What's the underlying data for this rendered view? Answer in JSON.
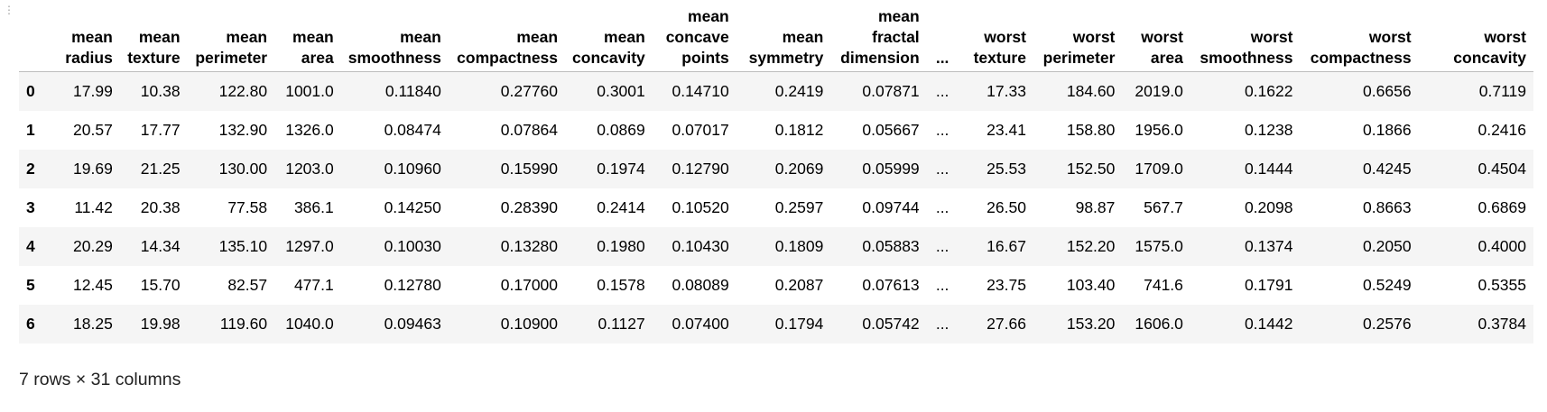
{
  "output": {
    "gutter_icon": "drag-handle-dots",
    "index_header": "",
    "columns": [
      [
        "mean",
        "radius"
      ],
      [
        "mean",
        "texture"
      ],
      [
        "mean",
        "perimeter"
      ],
      [
        "mean",
        "area"
      ],
      [
        "mean",
        "smoothness"
      ],
      [
        "mean",
        "compactness"
      ],
      [
        "mean",
        "concavity"
      ],
      [
        "mean",
        "concave",
        "points"
      ],
      [
        "mean",
        "symmetry"
      ],
      [
        "mean",
        "fractal",
        "dimension"
      ],
      [
        "..."
      ],
      [
        "worst",
        "texture"
      ],
      [
        "worst",
        "perimeter"
      ],
      [
        "worst",
        "area"
      ],
      [
        "worst",
        "smoothness"
      ],
      [
        "worst",
        "compactness"
      ],
      [
        "worst",
        "concavity"
      ]
    ],
    "rows": [
      {
        "index": "0",
        "cells": [
          "17.99",
          "10.38",
          "122.80",
          "1001.0",
          "0.11840",
          "0.27760",
          "0.3001",
          "0.14710",
          "0.2419",
          "0.07871",
          "...",
          "17.33",
          "184.60",
          "2019.0",
          "0.1622",
          "0.6656",
          "0.7119"
        ]
      },
      {
        "index": "1",
        "cells": [
          "20.57",
          "17.77",
          "132.90",
          "1326.0",
          "0.08474",
          "0.07864",
          "0.0869",
          "0.07017",
          "0.1812",
          "0.05667",
          "...",
          "23.41",
          "158.80",
          "1956.0",
          "0.1238",
          "0.1866",
          "0.2416"
        ]
      },
      {
        "index": "2",
        "cells": [
          "19.69",
          "21.25",
          "130.00",
          "1203.0",
          "0.10960",
          "0.15990",
          "0.1974",
          "0.12790",
          "0.2069",
          "0.05999",
          "...",
          "25.53",
          "152.50",
          "1709.0",
          "0.1444",
          "0.4245",
          "0.4504"
        ]
      },
      {
        "index": "3",
        "cells": [
          "11.42",
          "20.38",
          "77.58",
          "386.1",
          "0.14250",
          "0.28390",
          "0.2414",
          "0.10520",
          "0.2597",
          "0.09744",
          "...",
          "26.50",
          "98.87",
          "567.7",
          "0.2098",
          "0.8663",
          "0.6869"
        ]
      },
      {
        "index": "4",
        "cells": [
          "20.29",
          "14.34",
          "135.10",
          "1297.0",
          "0.10030",
          "0.13280",
          "0.1980",
          "0.10430",
          "0.1809",
          "0.05883",
          "...",
          "16.67",
          "152.20",
          "1575.0",
          "0.1374",
          "0.2050",
          "0.4000"
        ]
      },
      {
        "index": "5",
        "cells": [
          "12.45",
          "15.70",
          "82.57",
          "477.1",
          "0.12780",
          "0.17000",
          "0.1578",
          "0.08089",
          "0.2087",
          "0.07613",
          "...",
          "23.75",
          "103.40",
          "741.6",
          "0.1791",
          "0.5249",
          "0.5355"
        ]
      },
      {
        "index": "6",
        "cells": [
          "18.25",
          "19.98",
          "119.60",
          "1040.0",
          "0.09463",
          "0.10900",
          "0.1127",
          "0.07400",
          "0.1794",
          "0.05742",
          "...",
          "27.66",
          "153.20",
          "1606.0",
          "0.1442",
          "0.2576",
          "0.3784"
        ]
      }
    ],
    "shape_note": "7 rows × 31 columns"
  }
}
